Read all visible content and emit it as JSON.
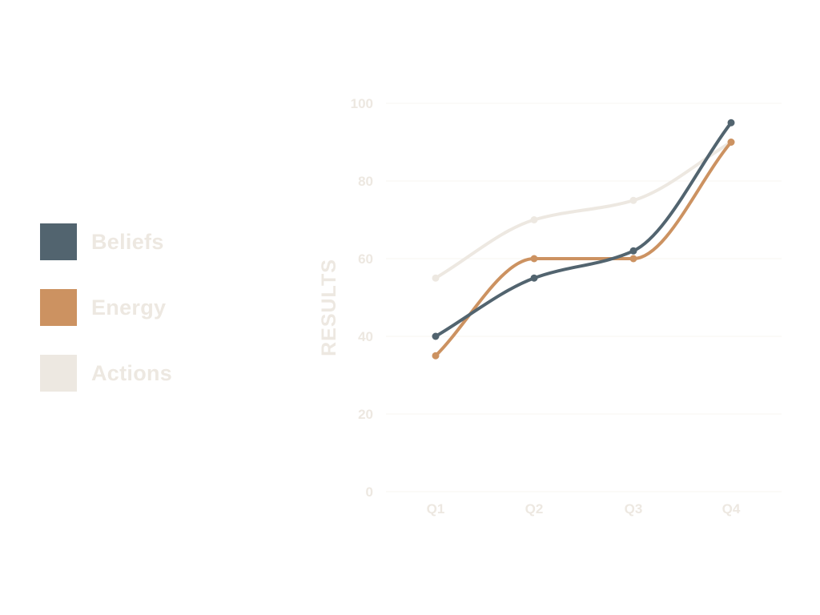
{
  "chart_data": {
    "type": "line",
    "categories": [
      "Q1",
      "Q2",
      "Q3",
      "Q4"
    ],
    "series": [
      {
        "name": "Beliefs",
        "values": [
          40,
          55,
          62,
          95
        ],
        "color": "#52646F"
      },
      {
        "name": "Energy",
        "values": [
          35,
          60,
          60,
          90
        ],
        "color": "#CC9261"
      },
      {
        "name": "Actions",
        "values": [
          55,
          70,
          75,
          90
        ],
        "color": "#EDE8E1"
      }
    ],
    "ylabel": "RESULTS",
    "xlabel": "",
    "ylim": [
      0,
      100
    ],
    "yticks": [
      0,
      20,
      40,
      60,
      80,
      100
    ],
    "grid": true,
    "legend_position": "left",
    "smooth": true,
    "text_color": "#EDE8E1",
    "grid_color": "#F7F5F2"
  }
}
